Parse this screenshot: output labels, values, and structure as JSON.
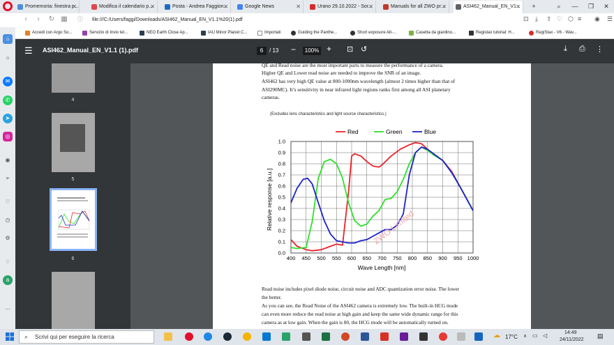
{
  "tabs": [
    {
      "label": "Promemoria: finestra p...",
      "fav": "#4a90d9"
    },
    {
      "label": "Modifica il calendario p...",
      "fav": "#e0474c"
    },
    {
      "label": "Posta - Andrea Faggion...",
      "fav": "#1c6cc4"
    },
    {
      "label": "Google News",
      "fav": "#4285f4"
    },
    {
      "label": "Urano 29.10.2022 - Sor...",
      "fav": "#d42a2a"
    },
    {
      "label": "Manuals for all ZWO pr...",
      "fav": "#c0392b"
    },
    {
      "label": "ASI462_Manual_EN_V1...",
      "fav": "#5f6368"
    }
  ],
  "address": {
    "url": "file:///C:/Users/faggi/Downloads/ASI462_Manual_EN_V1.1%20(1).pdf"
  },
  "bookmarks": [
    {
      "label": "Accedi con Argo So...",
      "fav": "#e67e22"
    },
    {
      "label": "Servizio di Invio tel...",
      "fav": "#8e44ad"
    },
    {
      "label": "NEO Earth Close Ap...",
      "fav": "#2c3e50"
    },
    {
      "label": "IAU Minor Planet C...",
      "fav": "#2c3e50"
    },
    {
      "label": "Importati",
      "fav": "#888888"
    },
    {
      "label": "Guiding the Panthe...",
      "fav": "#333333"
    },
    {
      "label": "Short exposure Alt-...",
      "fav": "#333333"
    },
    {
      "label": "Casetta da giardino...",
      "fav": "#7cb342"
    },
    {
      "label": "Registax tutorial: H...",
      "fav": "#333333"
    },
    {
      "label": "RegiStax - V6 - Wav...",
      "fav": "#d32f2f"
    }
  ],
  "pdf": {
    "title": "ASI462_Manual_EN_V1.1 (1).pdf",
    "current_page": "6",
    "total_pages": "/ 13",
    "zoom": "100%",
    "thumb_pages": [
      "4",
      "5",
      "6"
    ]
  },
  "page": {
    "p1": "QE and Read noise are the most important parts to measure the performance of a camera.",
    "p2": "Higher QE and Lower read noise are needed to improve the SNR of an image.",
    "p3a": "ASI462 has very high QE value at 800-1000nm wavelength (almost 2 times higher than that of",
    "p3b": "ASI290MC). It’s sensitivity in near infrared light regions ranks first among all ASI planetary",
    "p3c": "cameras.",
    "p4a": "Read noise includes pixel diode noise, circuit noise and ADC quantization error noise. The lower",
    "p4b": "the better.",
    "p5a": "As you can see, the Read Noise of the ASI462 camera is extremely low. The built-in HCG mode",
    "p5b": "can even more reduce the read noise at high gain and keep the same wide dynamic range for this",
    "p5c": "camera as at low gain. When the gain is 80, the HCG mode will be automatically turned on."
  },
  "chart_data": {
    "type": "line",
    "title": "(Excludes lens characteristics and light source characteristics.)",
    "xlabel": "Wave Length [nm]",
    "ylabel": "Relative response [a.u.]",
    "xlim": [
      400,
      1000
    ],
    "ylim": [
      0,
      1.0
    ],
    "xticks": [
      "400",
      "450",
      "500",
      "550",
      "600",
      "650",
      "700",
      "750",
      "800",
      "850",
      "900",
      "950",
      "1000"
    ],
    "yticks": [
      "0.0",
      "0.1",
      "0.2",
      "0.3",
      "0.4",
      "0.5",
      "0.6",
      "0.7",
      "0.8",
      "0.9",
      "1.0"
    ],
    "grid": true,
    "legend_position": "top",
    "watermark": "ZWO Limited",
    "series": [
      {
        "name": "Red",
        "color": "#e8232a",
        "x": [
          400,
          420,
          450,
          470,
          500,
          530,
          550,
          570,
          590,
          600,
          610,
          630,
          650,
          670,
          690,
          700,
          730,
          760,
          790,
          810,
          830,
          850,
          870,
          900,
          930,
          960,
          1000
        ],
        "y": [
          0.12,
          0.06,
          0.03,
          0.02,
          0.03,
          0.06,
          0.08,
          0.07,
          0.55,
          0.87,
          0.89,
          0.87,
          0.82,
          0.78,
          0.77,
          0.79,
          0.87,
          0.93,
          0.97,
          0.99,
          0.98,
          0.93,
          0.88,
          0.83,
          0.73,
          0.58,
          0.38
        ]
      },
      {
        "name": "Green",
        "color": "#2ee02a",
        "x": [
          400,
          420,
          450,
          470,
          490,
          510,
          530,
          550,
          570,
          590,
          610,
          630,
          650,
          670,
          690,
          710,
          730,
          750,
          770,
          790,
          810,
          830,
          850,
          870,
          900,
          930,
          960,
          1000
        ],
        "y": [
          0.05,
          0.04,
          0.05,
          0.28,
          0.67,
          0.82,
          0.84,
          0.8,
          0.67,
          0.45,
          0.29,
          0.24,
          0.26,
          0.33,
          0.38,
          0.48,
          0.49,
          0.55,
          0.66,
          0.8,
          0.9,
          0.95,
          0.92,
          0.88,
          0.83,
          0.72,
          0.58,
          0.38
        ]
      },
      {
        "name": "Blue",
        "color": "#1d22c8",
        "x": [
          400,
          420,
          440,
          455,
          470,
          490,
          510,
          530,
          550,
          570,
          590,
          610,
          630,
          650,
          670,
          690,
          710,
          730,
          750,
          770,
          790,
          810,
          830,
          850,
          870,
          900,
          930,
          960,
          1000
        ],
        "y": [
          0.45,
          0.58,
          0.66,
          0.67,
          0.62,
          0.45,
          0.29,
          0.17,
          0.11,
          0.1,
          0.09,
          0.09,
          0.11,
          0.12,
          0.15,
          0.18,
          0.21,
          0.21,
          0.25,
          0.35,
          0.7,
          0.9,
          0.95,
          0.93,
          0.89,
          0.83,
          0.72,
          0.58,
          0.38
        ]
      }
    ]
  },
  "taskbar": {
    "search_placeholder": "Scrivi qui per eseguire la ricerca",
    "temp": "17°C",
    "time": "14:49",
    "date": "24/11/2022"
  }
}
